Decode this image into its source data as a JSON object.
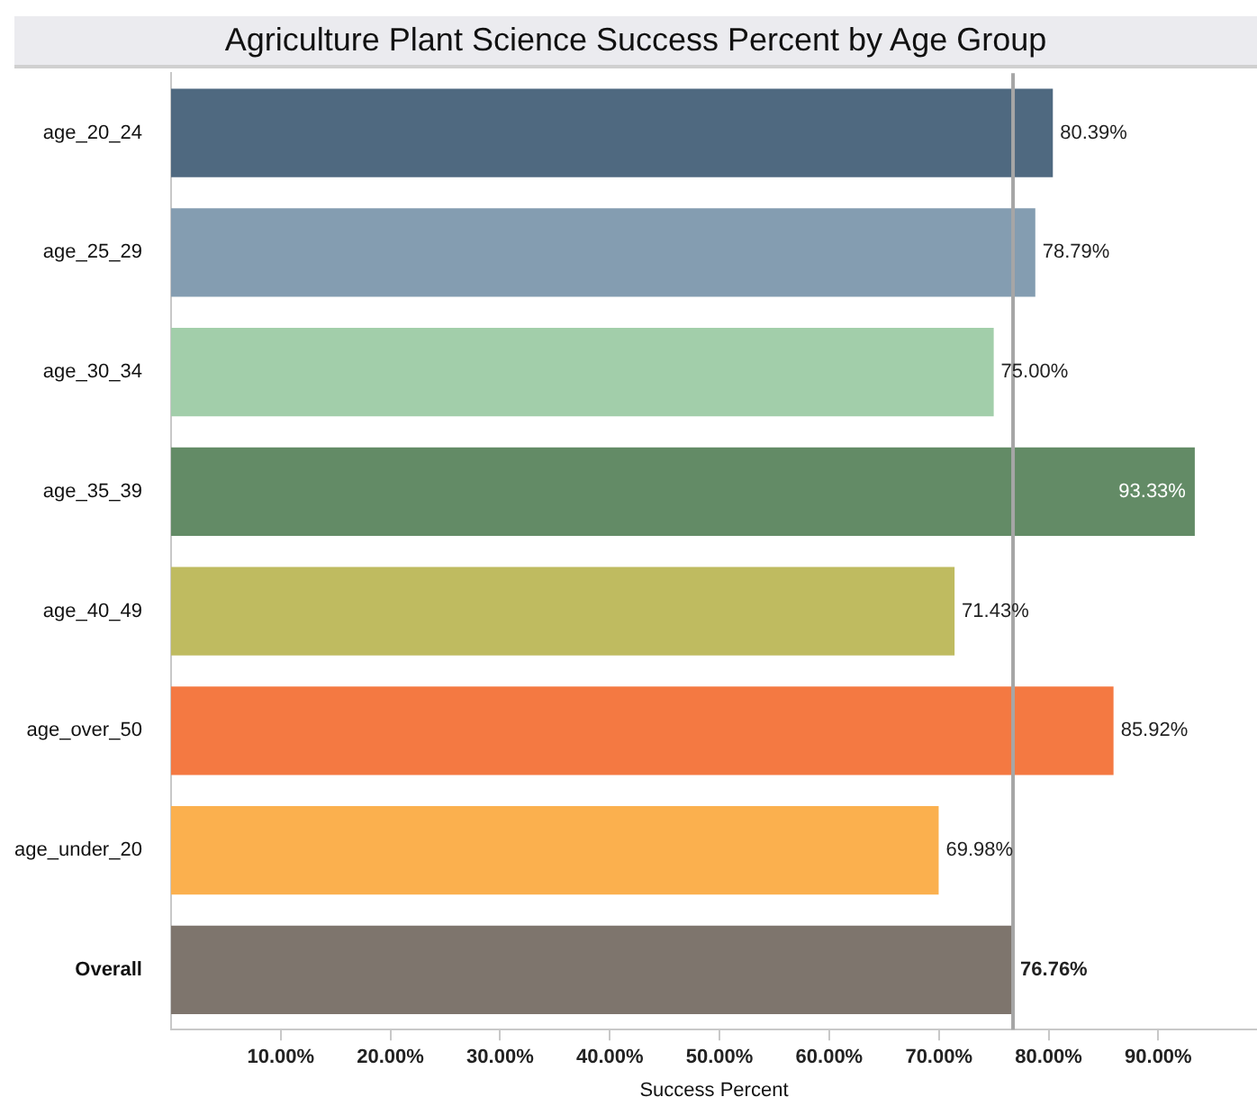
{
  "chart_data": {
    "type": "bar",
    "orientation": "horizontal",
    "title": "Agriculture Plant Science Success Percent by Age Group",
    "xlabel": "Success Percent",
    "categories": [
      "age_20_24",
      "age_25_29",
      "age_30_34",
      "age_35_39",
      "age_40_49",
      "age_over_50",
      "age_under_20",
      "Overall"
    ],
    "values": [
      80.39,
      78.79,
      75.0,
      93.33,
      71.43,
      85.92,
      69.98,
      76.76
    ],
    "colors": [
      "#4f6980",
      "#849db1",
      "#a2ceaa",
      "#638b66",
      "#bfbb60",
      "#f47942",
      "#fbb04e",
      "#7e756d"
    ],
    "value_labels": [
      "80.39%",
      "78.79%",
      "75.00%",
      "93.33%",
      "71.43%",
      "85.92%",
      "69.98%",
      "76.76%"
    ],
    "xlim": [
      0,
      99
    ],
    "xticks": [
      {
        "value": 10,
        "label": "10.00%"
      },
      {
        "value": 20,
        "label": "20.00%"
      },
      {
        "value": 30,
        "label": "30.00%"
      },
      {
        "value": 40,
        "label": "40.00%"
      },
      {
        "value": 50,
        "label": "50.00%"
      },
      {
        "value": 60,
        "label": "60.00%"
      },
      {
        "value": 70,
        "label": "70.00%"
      },
      {
        "value": 80,
        "label": "80.00%"
      },
      {
        "value": 90,
        "label": "90.00%"
      }
    ],
    "ref_lines": [
      {
        "axis": "x",
        "value": 76.76,
        "color": "#a6a6a6"
      }
    ],
    "grid": false,
    "legend": false
  }
}
